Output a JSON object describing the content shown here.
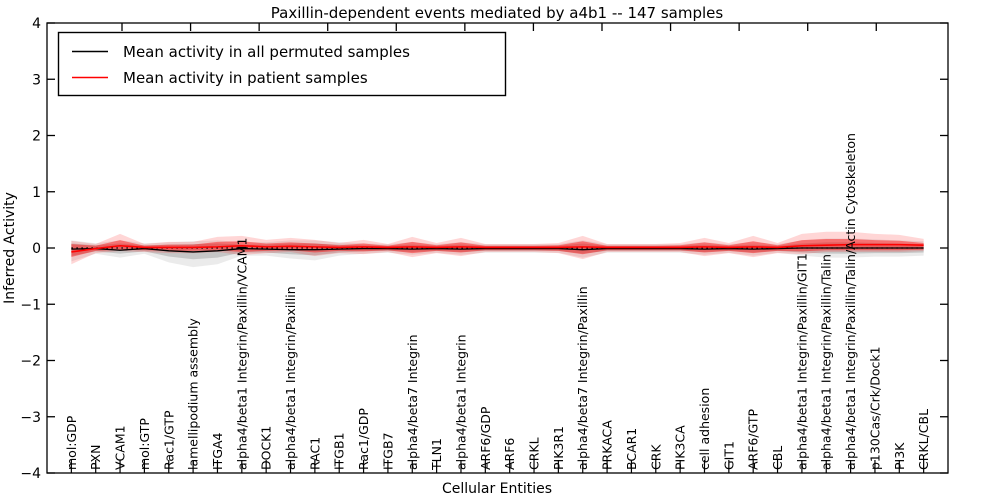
{
  "chart_data": {
    "type": "line",
    "title": "Paxillin-dependent events mediated by a4b1 -- 147 samples",
    "xlabel": "Cellular Entities",
    "ylabel": "Inferred Activity",
    "ylim": [
      -4,
      4
    ],
    "ytick_labels": [
      "4",
      "3",
      "2",
      "1",
      "0",
      "−1",
      "−2",
      "−3",
      "−4"
    ],
    "ytick_values": [
      4,
      3,
      2,
      1,
      0,
      -1,
      -2,
      -3,
      -4
    ],
    "grid": false,
    "legend_position": "upper left",
    "legend": [
      {
        "label": "Mean activity in all permuted samples",
        "color": "#000000"
      },
      {
        "label": "Mean activity in patient samples",
        "color": "#ff0000"
      }
    ],
    "zero_reference_line": {
      "y": 0,
      "style": "dotted",
      "color": "#000000"
    },
    "colors": {
      "patient_line": "#ff0000",
      "permuted_line": "#000000",
      "patient_band": "rgba(255,0,0,0.42)",
      "patient_band_halo": "rgba(255,0,0,0.16)",
      "permuted_band": "rgba(120,120,120,0.32)",
      "permuted_band_halo": "rgba(120,120,120,0.15)"
    },
    "categories": [
      "mol:GDP",
      "PXN",
      "VCAM1",
      "mol:GTP",
      "Rac1/GTP",
      "lamellipodium assembly",
      "ITGA4",
      "alpha4/beta1 Integrin/Paxillin/VCAM1",
      "DOCK1",
      "alpha4/beta1 Integrin/Paxillin",
      "RAC1",
      "ITGB1",
      "Rac1/GDP",
      "ITGB7",
      "alpha4/beta7 Integrin",
      "TLN1",
      "alpha4/beta1 Integrin",
      "ARF6/GDP",
      "ARF6",
      "CRKL",
      "PIK3R1",
      "alpha4/beta7 Integrin/Paxillin",
      "PRKACA",
      "BCAR1",
      "CRK",
      "PIK3CA",
      "cell adhesion",
      "GIT1",
      "ARF6/GTP",
      "CBL",
      "alpha4/beta1 Integrin/Paxillin/GIT1",
      "alpha4/beta1 Integrin/Paxillin/Talin",
      "alpha4/beta1 Integrin/Paxillin/Talin/Actin Cytoskeleton",
      "p130Cas/Crk/Dock1",
      "PI3K",
      "CRKL/CBL"
    ],
    "series": [
      {
        "name": "mean_permuted",
        "values": [
          -0.02,
          -0.01,
          -0.04,
          -0.01,
          -0.05,
          -0.07,
          -0.05,
          -0.01,
          -0.02,
          -0.03,
          -0.03,
          -0.02,
          -0.01,
          -0.01,
          -0.02,
          -0.01,
          -0.02,
          -0.01,
          -0.01,
          -0.01,
          -0.01,
          -0.03,
          -0.01,
          -0.01,
          -0.01,
          -0.01,
          -0.02,
          -0.01,
          -0.02,
          -0.01,
          0.0,
          0.0,
          0.0,
          0.0,
          0.0,
          0.0
        ]
      },
      {
        "name": "mean_patient",
        "values": [
          -0.07,
          -0.01,
          0.04,
          0.01,
          0.01,
          0.01,
          0.02,
          0.04,
          0.02,
          0.03,
          0.02,
          0.01,
          0.02,
          0.01,
          0.02,
          0.01,
          0.02,
          0.01,
          0.01,
          0.01,
          0.01,
          0.02,
          0.01,
          0.01,
          0.01,
          0.01,
          0.02,
          0.01,
          0.02,
          0.01,
          0.04,
          0.05,
          0.06,
          0.06,
          0.06,
          0.05
        ]
      },
      {
        "name": "patient_band_upper",
        "values": [
          0.07,
          0.04,
          0.14,
          0.04,
          0.06,
          0.06,
          0.11,
          0.12,
          0.08,
          0.1,
          0.08,
          0.05,
          0.08,
          0.04,
          0.11,
          0.05,
          0.1,
          0.04,
          0.04,
          0.04,
          0.05,
          0.12,
          0.04,
          0.04,
          0.04,
          0.05,
          0.1,
          0.05,
          0.12,
          0.05,
          0.14,
          0.16,
          0.16,
          0.14,
          0.13,
          0.09
        ]
      },
      {
        "name": "patient_band_lower",
        "values": [
          -0.16,
          -0.05,
          -0.03,
          -0.04,
          -0.05,
          -0.05,
          -0.04,
          -0.07,
          -0.05,
          -0.04,
          -0.08,
          -0.05,
          -0.06,
          -0.04,
          -0.09,
          -0.05,
          -0.08,
          -0.04,
          -0.04,
          -0.04,
          -0.05,
          -0.11,
          -0.04,
          -0.04,
          -0.04,
          -0.04,
          -0.08,
          -0.05,
          -0.09,
          -0.05,
          -0.06,
          -0.04,
          -0.04,
          -0.04,
          -0.04,
          -0.03
        ]
      },
      {
        "name": "permuted_band_upper",
        "values": [
          0.08,
          0.05,
          0.08,
          0.05,
          0.06,
          0.07,
          0.08,
          0.06,
          0.06,
          0.08,
          0.08,
          0.06,
          0.05,
          0.04,
          0.06,
          0.04,
          0.06,
          0.04,
          0.04,
          0.04,
          0.04,
          0.08,
          0.04,
          0.04,
          0.04,
          0.04,
          0.06,
          0.04,
          0.06,
          0.04,
          0.08,
          0.1,
          0.1,
          0.09,
          0.08,
          0.07
        ]
      },
      {
        "name": "permuted_band_lower",
        "values": [
          -0.14,
          -0.06,
          -0.1,
          -0.06,
          -0.15,
          -0.2,
          -0.17,
          -0.08,
          -0.08,
          -0.11,
          -0.13,
          -0.08,
          -0.06,
          -0.05,
          -0.07,
          -0.05,
          -0.07,
          -0.05,
          -0.05,
          -0.05,
          -0.05,
          -0.1,
          -0.05,
          -0.05,
          -0.05,
          -0.05,
          -0.07,
          -0.05,
          -0.08,
          -0.05,
          -0.08,
          -0.1,
          -0.1,
          -0.09,
          -0.09,
          -0.08
        ]
      }
    ]
  }
}
